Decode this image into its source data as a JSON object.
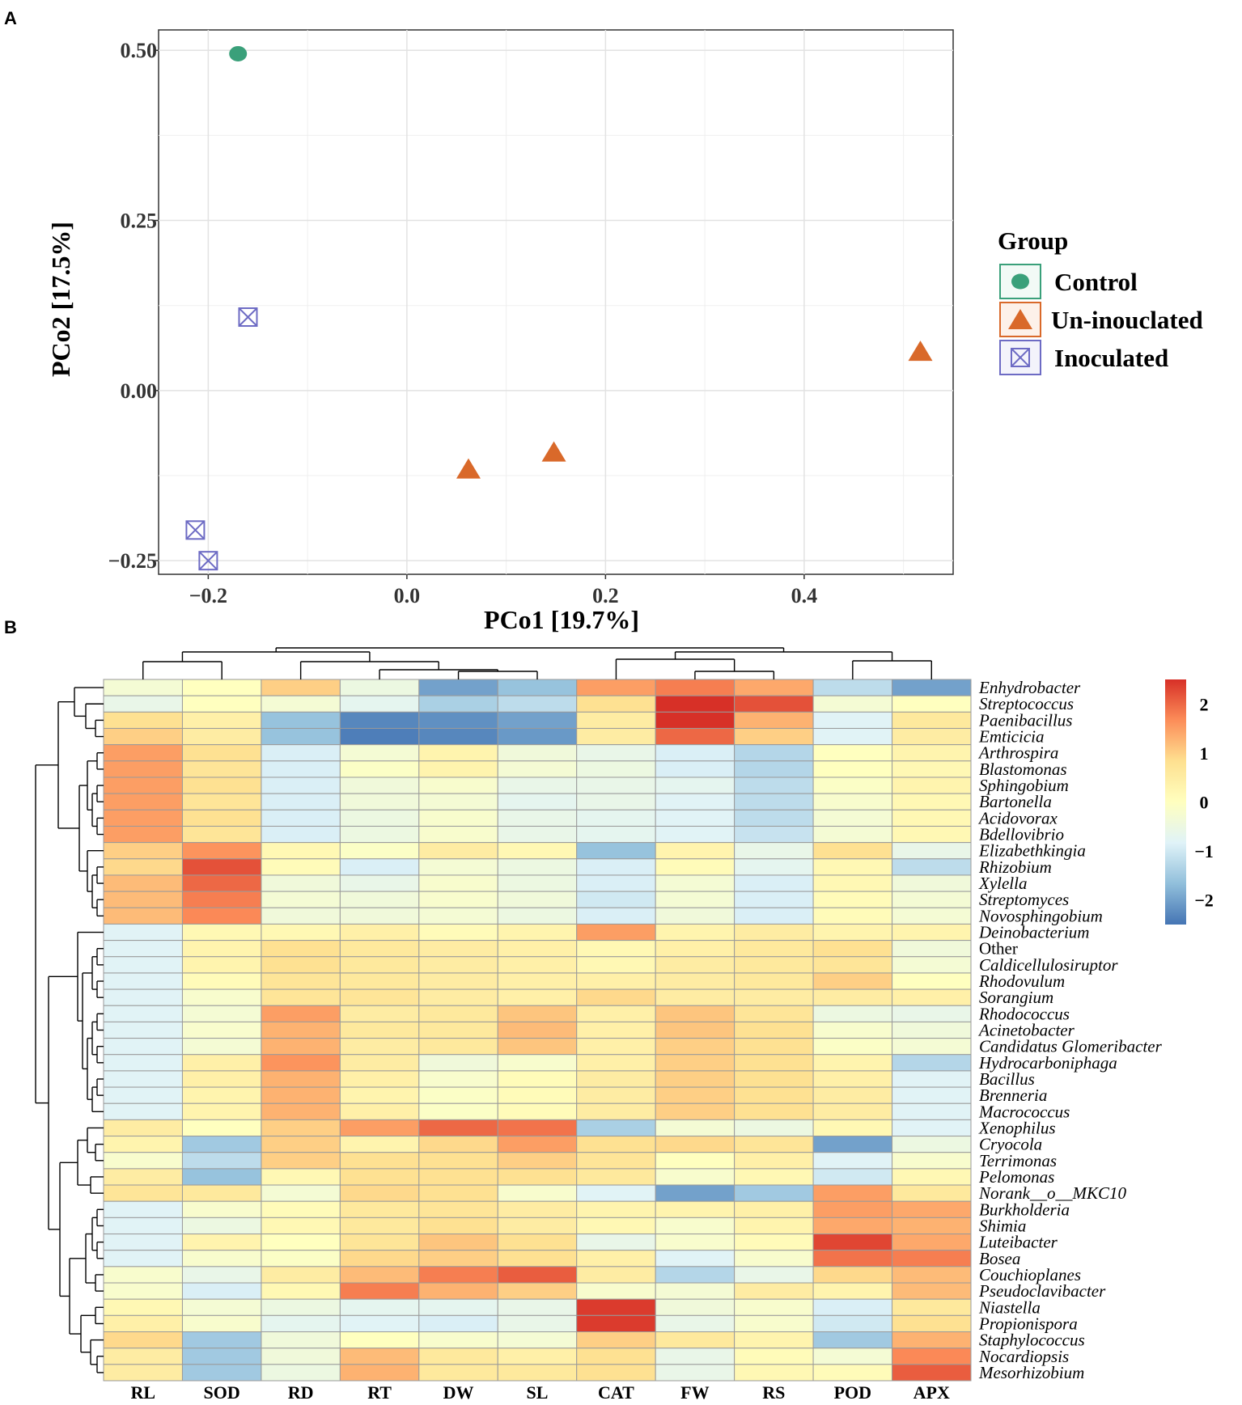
{
  "panels": {
    "a": "A",
    "b": "B"
  },
  "chart_data": [
    {
      "type": "scatter",
      "panel": "A",
      "xlabel": "PCo1 [19.7%]",
      "ylabel": "PCo2 [17.5%]",
      "xlim": [
        -0.25,
        0.55
      ],
      "ylim": [
        -0.27,
        0.53
      ],
      "x_ticks": [
        -0.2,
        0.0,
        0.2,
        0.4
      ],
      "x_tick_labels": [
        "−0.2",
        "0.0",
        "0.2",
        "0.4"
      ],
      "y_ticks": [
        -0.25,
        0.0,
        0.25,
        0.5
      ],
      "y_tick_labels": [
        "−0.25",
        "0.00",
        "0.25",
        "0.50"
      ],
      "grid": true,
      "legend": {
        "title": "Group",
        "position": "right"
      },
      "series": [
        {
          "name": "Control",
          "marker": "circle",
          "color": "#3aa07a",
          "points": [
            [
              -0.17,
              0.495
            ]
          ]
        },
        {
          "name": "Un-inouclated",
          "marker": "triangle",
          "color": "#d9692a",
          "points": [
            [
              0.062,
              -0.115
            ],
            [
              0.148,
              -0.09
            ],
            [
              0.517,
              0.058
            ]
          ]
        },
        {
          "name": "Inoculated",
          "marker": "boxed-x",
          "color": "#6d6bc4",
          "points": [
            [
              -0.16,
              0.108
            ],
            [
              -0.213,
              -0.205
            ],
            [
              -0.2,
              -0.25
            ]
          ]
        }
      ]
    },
    {
      "type": "heatmap",
      "panel": "B",
      "columns": [
        "RL",
        "SOD",
        "RD",
        "RT",
        "DW",
        "SL",
        "CAT",
        "FW",
        "RS",
        "POD",
        "APX"
      ],
      "rows": [
        "Enhydrobacter",
        "Streptococcus",
        "Paenibacillus",
        "Emticicia",
        "Arthrospira",
        "Blastomonas",
        "Sphingobium",
        "Bartonella",
        "Acidovorax",
        "Bdellovibrio",
        "Elizabethkingia",
        "Rhizobium",
        "Xylella",
        "Streptomyces",
        "Novosphingobium",
        "Deinobacterium",
        "Other",
        "Caldicellulosiruptor",
        "Rhodovulum",
        "Sorangium",
        "Rhodococcus",
        "Acinetobacter",
        "Candidatus Glomeribacter",
        "Hydrocarboniphaga",
        "Bacillus",
        "Brenneria",
        "Macrococcus",
        "Xenophilus",
        "Cryocola",
        "Terrimonas",
        "Pelomonas",
        "Norank__o__MKC10",
        "Burkholderia",
        "Shimia",
        "Luteibacter",
        "Bosea",
        "Couchioplanes",
        "Pseudoclavibacter",
        "Niastella",
        "Propionispora",
        "Staphylococcus",
        "Nocardiopsis",
        "Mesorhizobium"
      ],
      "values": [
        [
          -0.3,
          0.0,
          1.0,
          -0.5,
          -2.0,
          -1.6,
          1.5,
          1.8,
          1.4,
          -1.2,
          -2.0
        ],
        [
          -0.6,
          0.0,
          -0.3,
          -0.7,
          -1.4,
          -1.2,
          0.8,
          2.6,
          2.2,
          -0.3,
          0.0
        ],
        [
          0.8,
          0.4,
          -1.6,
          -2.3,
          -2.2,
          -2.0,
          0.5,
          2.5,
          1.3,
          -0.8,
          0.6
        ],
        [
          1.0,
          0.5,
          -1.6,
          -2.4,
          -2.3,
          -2.1,
          0.5,
          2.0,
          1.0,
          -0.8,
          0.5
        ],
        [
          1.5,
          0.8,
          -0.9,
          -0.3,
          0.3,
          -0.4,
          -0.6,
          -0.9,
          -1.3,
          0.0,
          0.3
        ],
        [
          1.5,
          0.7,
          -0.9,
          -0.1,
          0.3,
          -0.3,
          -0.5,
          -0.9,
          -1.3,
          0.0,
          0.2
        ],
        [
          1.5,
          0.8,
          -0.9,
          -0.4,
          -0.2,
          -0.6,
          -0.6,
          -0.7,
          -1.2,
          -0.1,
          0.3
        ],
        [
          1.5,
          0.7,
          -0.9,
          -0.4,
          -0.3,
          -0.7,
          -0.6,
          -0.8,
          -1.2,
          -0.2,
          0.2
        ],
        [
          1.5,
          0.8,
          -0.9,
          -0.5,
          -0.2,
          -0.6,
          -0.7,
          -0.8,
          -1.2,
          -0.3,
          0.2
        ],
        [
          1.5,
          0.7,
          -0.9,
          -0.5,
          -0.2,
          -0.6,
          -0.7,
          -0.8,
          -1.1,
          -0.3,
          0.2
        ],
        [
          1.0,
          1.6,
          0.2,
          -0.1,
          0.5,
          0.2,
          -1.6,
          0.3,
          -0.6,
          0.8,
          -0.6
        ],
        [
          0.9,
          2.2,
          0.1,
          -0.9,
          -0.3,
          -0.5,
          -0.9,
          0.1,
          -0.7,
          0.2,
          -1.2
        ],
        [
          1.2,
          2.0,
          -0.4,
          -0.6,
          -0.2,
          -0.5,
          -0.9,
          -0.3,
          -0.9,
          0.2,
          -0.4
        ],
        [
          1.2,
          1.8,
          -0.3,
          -0.4,
          -0.2,
          -0.4,
          -1.0,
          -0.3,
          -0.9,
          0.1,
          -0.3
        ],
        [
          1.2,
          1.7,
          -0.4,
          -0.4,
          -0.3,
          -0.5,
          -0.9,
          -0.4,
          -0.9,
          0.1,
          -0.3
        ],
        [
          -0.8,
          0.2,
          0.2,
          0.4,
          0.1,
          0.3,
          1.5,
          0.3,
          0.5,
          0.3,
          0.3
        ],
        [
          -0.8,
          0.3,
          0.8,
          0.6,
          0.5,
          0.4,
          0.2,
          0.4,
          0.6,
          0.8,
          -0.4
        ],
        [
          -0.8,
          0.3,
          0.8,
          0.6,
          0.5,
          0.4,
          0.2,
          0.5,
          0.6,
          0.7,
          -0.3
        ],
        [
          -0.8,
          0.1,
          0.7,
          0.6,
          0.5,
          0.4,
          0.4,
          0.5,
          0.6,
          1.0,
          0.0
        ],
        [
          -0.8,
          -0.2,
          0.7,
          0.7,
          0.5,
          0.4,
          0.9,
          0.5,
          0.5,
          0.5,
          0.4
        ],
        [
          -0.8,
          -0.3,
          1.5,
          0.5,
          0.6,
          1.1,
          0.4,
          1.1,
          0.7,
          -0.5,
          -0.6
        ],
        [
          -0.8,
          -0.2,
          1.3,
          0.6,
          0.6,
          1.2,
          0.4,
          1.1,
          0.8,
          -0.2,
          -0.4
        ],
        [
          -0.8,
          -0.3,
          1.3,
          0.5,
          0.6,
          1.1,
          0.4,
          1.0,
          0.8,
          -0.1,
          -0.3
        ],
        [
          -0.8,
          0.4,
          1.6,
          0.5,
          -0.4,
          -0.2,
          0.4,
          1.0,
          0.8,
          0.3,
          -1.3
        ],
        [
          -0.8,
          0.4,
          1.3,
          0.4,
          -0.2,
          0.1,
          0.5,
          1.0,
          0.8,
          0.4,
          -0.8
        ],
        [
          -0.8,
          0.3,
          1.3,
          0.3,
          -0.1,
          0.1,
          0.5,
          1.0,
          0.8,
          0.5,
          -0.8
        ],
        [
          -0.8,
          0.3,
          1.3,
          0.4,
          -0.1,
          0.1,
          0.5,
          1.0,
          0.8,
          0.5,
          -0.8
        ],
        [
          0.5,
          0.0,
          1.0,
          1.5,
          2.0,
          1.9,
          -1.4,
          -0.3,
          -0.5,
          0.2,
          -0.8
        ],
        [
          0.3,
          -1.5,
          1.0,
          0.3,
          0.9,
          1.5,
          0.8,
          0.9,
          0.7,
          -2.0,
          -0.5
        ],
        [
          -0.2,
          -1.2,
          1.0,
          0.8,
          0.8,
          1.0,
          0.7,
          0.0,
          0.4,
          -0.8,
          -0.2
        ],
        [
          0.5,
          -1.6,
          0.2,
          0.8,
          0.8,
          0.8,
          0.6,
          -0.2,
          0.2,
          -1.0,
          0.2
        ],
        [
          0.7,
          0.6,
          -0.3,
          0.9,
          0.8,
          -0.2,
          -0.8,
          -2.0,
          -1.5,
          1.5,
          0.6
        ],
        [
          -0.8,
          -0.2,
          0.1,
          0.6,
          0.7,
          0.5,
          0.3,
          0.3,
          0.4,
          1.5,
          1.4
        ],
        [
          -0.8,
          -0.5,
          0.2,
          0.6,
          0.8,
          0.5,
          0.2,
          -0.2,
          0.3,
          1.4,
          1.3
        ],
        [
          -0.8,
          0.3,
          0.0,
          0.7,
          1.1,
          0.8,
          -0.6,
          -0.2,
          0.1,
          2.3,
          1.4
        ],
        [
          -0.8,
          -0.2,
          -0.1,
          0.9,
          1.0,
          0.8,
          0.4,
          -0.8,
          -0.2,
          1.9,
          1.8
        ],
        [
          -0.2,
          -0.6,
          0.5,
          1.2,
          1.8,
          2.1,
          0.5,
          -1.3,
          -0.6,
          0.9,
          1.2
        ],
        [
          -0.2,
          -0.9,
          0.2,
          1.8,
          1.3,
          1.0,
          -0.2,
          -0.3,
          0.5,
          0.3,
          1.2
        ],
        [
          0.2,
          -0.3,
          -0.5,
          -0.7,
          -0.7,
          -0.6,
          2.4,
          -0.4,
          -0.2,
          -0.9,
          0.6
        ],
        [
          0.4,
          -0.2,
          -0.7,
          -0.8,
          -0.9,
          -0.6,
          2.4,
          -0.6,
          -0.2,
          -1.0,
          0.8
        ],
        [
          0.9,
          -1.5,
          -0.4,
          0.0,
          -0.2,
          -0.3,
          1.0,
          0.6,
          0.3,
          -1.5,
          1.3
        ],
        [
          0.5,
          -1.5,
          -0.4,
          1.2,
          0.6,
          0.4,
          0.8,
          -0.6,
          0.1,
          -0.3,
          1.7
        ],
        [
          0.5,
          -1.5,
          -0.5,
          1.3,
          0.6,
          0.6,
          0.8,
          -0.6,
          0.2,
          0.1,
          2.1
        ]
      ],
      "colorbar": {
        "range": [
          -2.5,
          2.5
        ],
        "ticks": [
          2,
          1,
          0,
          -1,
          -2
        ],
        "tick_labels": [
          "2",
          "1",
          "0",
          "−1",
          "−2"
        ],
        "stops": [
          "#4575b4",
          "#91bfdb",
          "#e0f3f8",
          "#ffffbf",
          "#fee090",
          "#fc8d59",
          "#d73027"
        ]
      },
      "col_dendrogram_order": [
        "RL",
        "SOD",
        "RD",
        "RT",
        "DW",
        "SL",
        "CAT",
        "FW",
        "RS",
        "POD",
        "APX"
      ]
    }
  ]
}
